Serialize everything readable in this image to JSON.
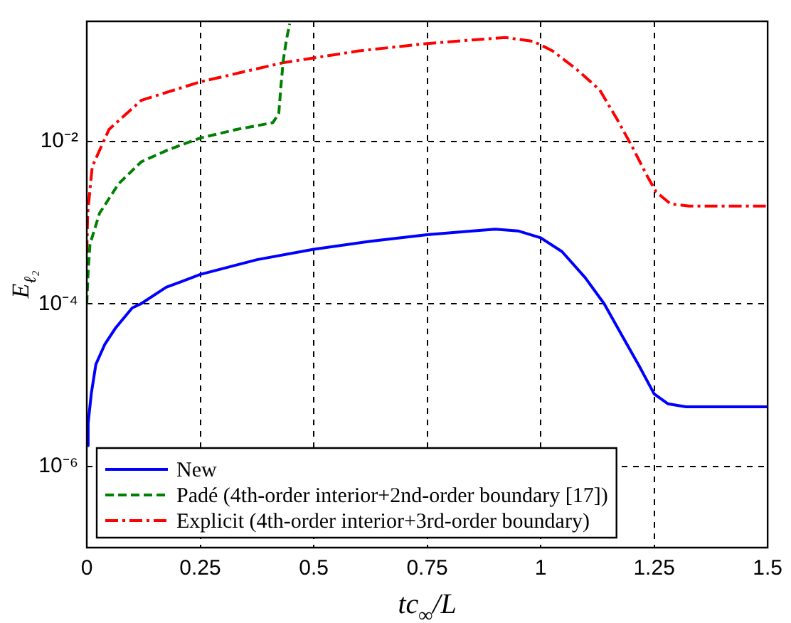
{
  "chart_data": {
    "type": "line",
    "xlabel": "tc$_{∞}$/L",
    "ylabel": "E$_{ℓ₂}$",
    "xlim": [
      0,
      1.5
    ],
    "xticks": [
      0,
      0.25,
      0.5,
      0.75,
      1,
      1.25,
      1.5
    ],
    "ylim": [
      1e-07,
      0.3
    ],
    "yticks": [
      {
        "value": 1e-06,
        "label": "10⁻⁶"
      },
      {
        "value": 0.0001,
        "label": "10⁻⁴"
      },
      {
        "value": 0.01,
        "label": "10⁻²"
      }
    ],
    "log": "y",
    "grid": true,
    "legend": "bottom left",
    "series": [
      {
        "name": "New",
        "color": "#0000ff",
        "line_style": "solid",
        "x": [
          0,
          0.003,
          0.01,
          0.02,
          0.04,
          0.064,
          0.1,
          0.119,
          0.175,
          0.25,
          0.375,
          0.5,
          0.625,
          0.75,
          0.85,
          0.9,
          0.95,
          1.0,
          1.047,
          1.098,
          1.14,
          1.18,
          1.215,
          1.25,
          1.28,
          1.32,
          1.5
        ],
        "values": [
          1.8e-06,
          3.4e-06,
          7.9e-06,
          1.8e-05,
          3.2e-05,
          5.1e-05,
          8.9e-05,
          0.0001,
          0.00016,
          0.00023,
          0.00035,
          0.00047,
          0.00059,
          0.00071,
          0.00079,
          0.00083,
          0.00079,
          0.00065,
          0.00044,
          0.00021,
          0.0001,
          4e-05,
          1.8e-05,
          7.8e-06,
          5.9e-06,
          5.4e-06,
          5.4e-06
        ]
      },
      {
        "name": "Padé (4th-order interior+2nd-order boundary [17])",
        "color": "#008000",
        "line_style": "dashed",
        "x": [
          0,
          0.003,
          0.007,
          0.028,
          0.07,
          0.12,
          0.18,
          0.25,
          0.33,
          0.41,
          0.423,
          0.428,
          0.433,
          0.44,
          0.447
        ],
        "values": [
          0.0001,
          0.00025,
          0.00054,
          0.0013,
          0.003,
          0.0056,
          0.0079,
          0.011,
          0.014,
          0.017,
          0.022,
          0.05,
          0.1,
          0.18,
          0.28
        ]
      },
      {
        "name": "Explicit (4th-order interior+3rd-order boundary)",
        "color": "#ff0000",
        "line_style": "dashdot",
        "x": [
          0,
          0.002,
          0.012,
          0.049,
          0.12,
          0.25,
          0.433,
          0.6,
          0.75,
          0.922,
          0.984,
          1.026,
          1.078,
          1.13,
          1.17,
          1.203,
          1.234,
          1.254,
          1.286,
          1.327,
          1.5
        ],
        "values": [
          0.00042,
          0.0013,
          0.0049,
          0.014,
          0.032,
          0.054,
          0.093,
          0.13,
          0.16,
          0.19,
          0.17,
          0.13,
          0.078,
          0.043,
          0.018,
          0.0083,
          0.0038,
          0.0024,
          0.0017,
          0.0016,
          0.0016
        ]
      }
    ]
  }
}
